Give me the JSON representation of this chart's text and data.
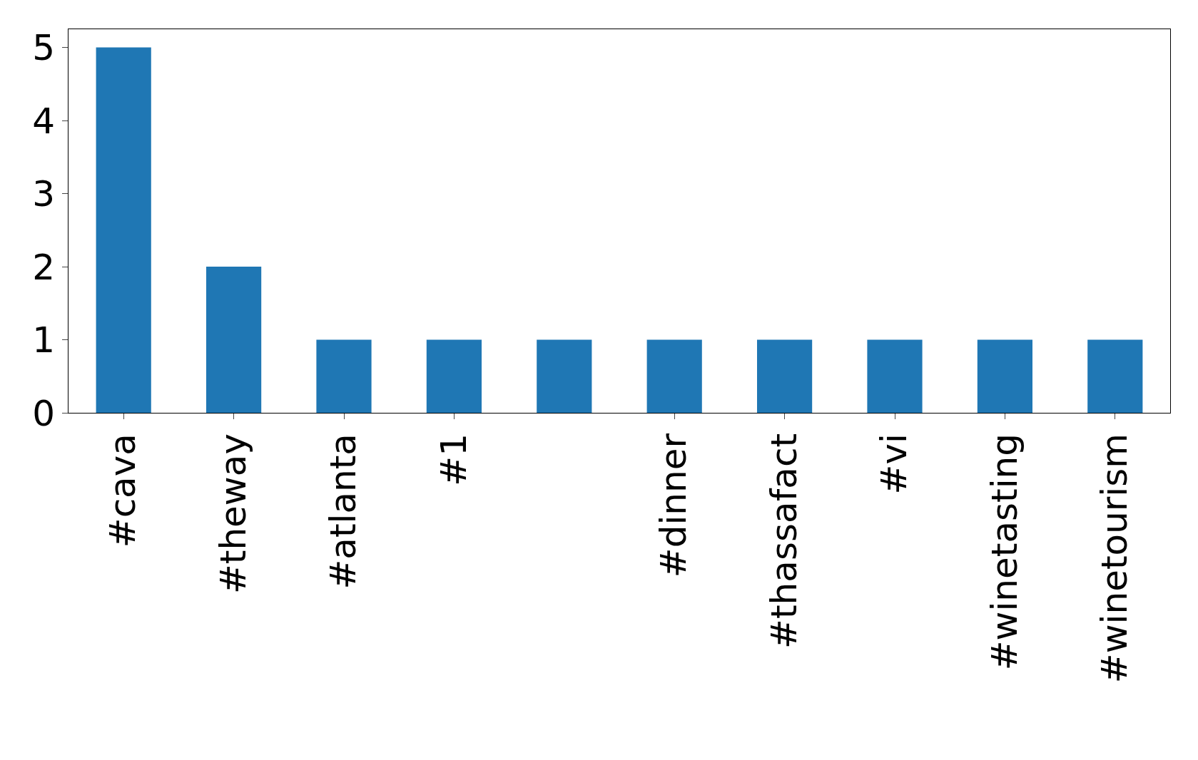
{
  "chart_data": {
    "type": "bar",
    "categories": [
      "#cava",
      "#theway",
      "#atlanta",
      "#1",
      null,
      "#dinner",
      "#thassafact",
      "#vi",
      "#winetasting",
      "#winetourism"
    ],
    "values": [
      5,
      2,
      1,
      1,
      1,
      1,
      1,
      1,
      1,
      1
    ],
    "color": "#1f77b4",
    "ylim": [
      0,
      5.25
    ],
    "yticks": [
      0,
      1,
      2,
      3,
      4,
      5
    ],
    "grid": false,
    "legend": false
  }
}
